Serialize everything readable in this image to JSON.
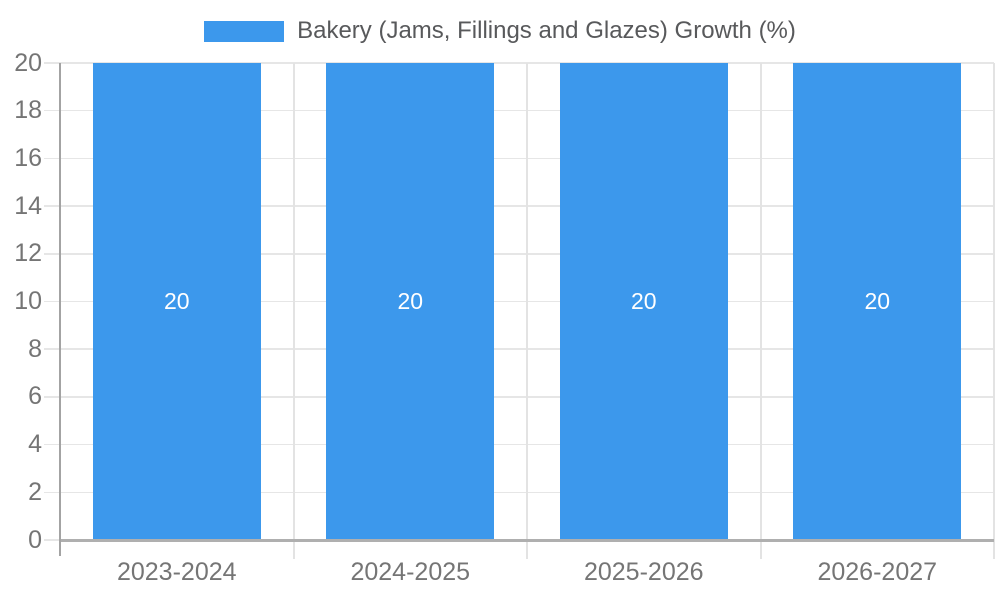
{
  "chart_data": {
    "type": "bar",
    "title": "Bakery (Jams, Fillings and Glazes) Growth (%)",
    "categories": [
      "2023-2024",
      "2024-2025",
      "2025-2026",
      "2026-2027"
    ],
    "values": [
      20,
      20,
      20,
      20
    ],
    "bar_labels": [
      "20",
      "20",
      "20",
      "20"
    ],
    "xlabel": "",
    "ylabel": "",
    "ylim": [
      0,
      20
    ],
    "ytick_step": 2,
    "yticks": [
      0,
      2,
      4,
      6,
      8,
      10,
      12,
      14,
      16,
      18,
      20
    ],
    "grid": true,
    "legend_position": "top",
    "colors": {
      "bar": "#3C98EC",
      "grid": "#E6E6E6",
      "separator": "#E3E3E3",
      "axis_line": "#A3A3A3",
      "baseline": "#AFAFAF",
      "tick_label": "#757575",
      "legend_text": "#58595B",
      "bar_label": "#FFFFFF",
      "background": "#FFFFFF"
    }
  }
}
